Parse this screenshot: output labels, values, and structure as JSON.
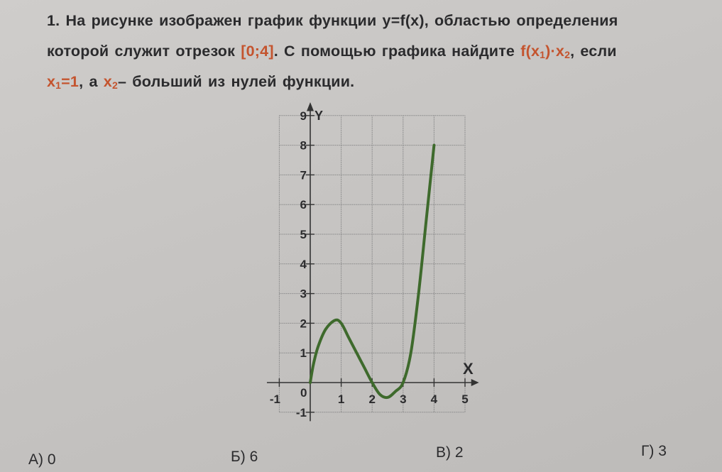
{
  "problem": {
    "number": "1.",
    "line1": "На рисунке изображен график функции y=f(x), областью определения",
    "line2_a": "которой служит отрезок",
    "interval": "[0;4]",
    "line2_b": ". С помощью графика найдите",
    "expr_f": "f(x",
    "expr_sub1": "1",
    "expr_mid": ")·x",
    "expr_sub2": "2",
    "line2_c": ", если",
    "x1_var": "x",
    "x1_sub": "1",
    "x1_val": "=1",
    "line3_a": ", а",
    "x2_var": "x",
    "x2_sub": "2",
    "line3_b": "– больший из нулей функции."
  },
  "colors": {
    "highlight": "#c4542e",
    "curve": "#3e6a2c",
    "text": "#2b2b2d",
    "grid": "#8e8e8e"
  },
  "chart_data": {
    "type": "line",
    "title": "",
    "xlabel": "X",
    "ylabel": "Y",
    "xlim": [
      -1,
      5
    ],
    "ylim": [
      -1,
      9
    ],
    "grid": true,
    "x_ticks": [
      "-1",
      "0",
      "1",
      "2",
      "3",
      "4",
      "5"
    ],
    "y_ticks": [
      "-1",
      "1",
      "2",
      "3",
      "4",
      "5",
      "6",
      "7",
      "8",
      "9"
    ],
    "origin_label": "0",
    "series": [
      {
        "x": [
          0,
          0.1,
          0.25,
          0.5,
          0.8,
          1,
          1.25,
          1.5,
          1.75,
          2,
          2.25,
          2.5,
          2.75,
          3,
          3.25,
          3.5,
          3.75,
          4
        ],
        "y": [
          0,
          0.6,
          1.2,
          1.8,
          2.1,
          2.0,
          1.5,
          1.0,
          0.5,
          0,
          -0.4,
          -0.5,
          -0.3,
          0,
          1.0,
          3.0,
          5.5,
          8
        ]
      }
    ]
  },
  "answers": [
    {
      "label": "А) 0"
    },
    {
      "label": "Б) 6"
    },
    {
      "label": "В) 2"
    },
    {
      "label": "Г) 3"
    }
  ]
}
